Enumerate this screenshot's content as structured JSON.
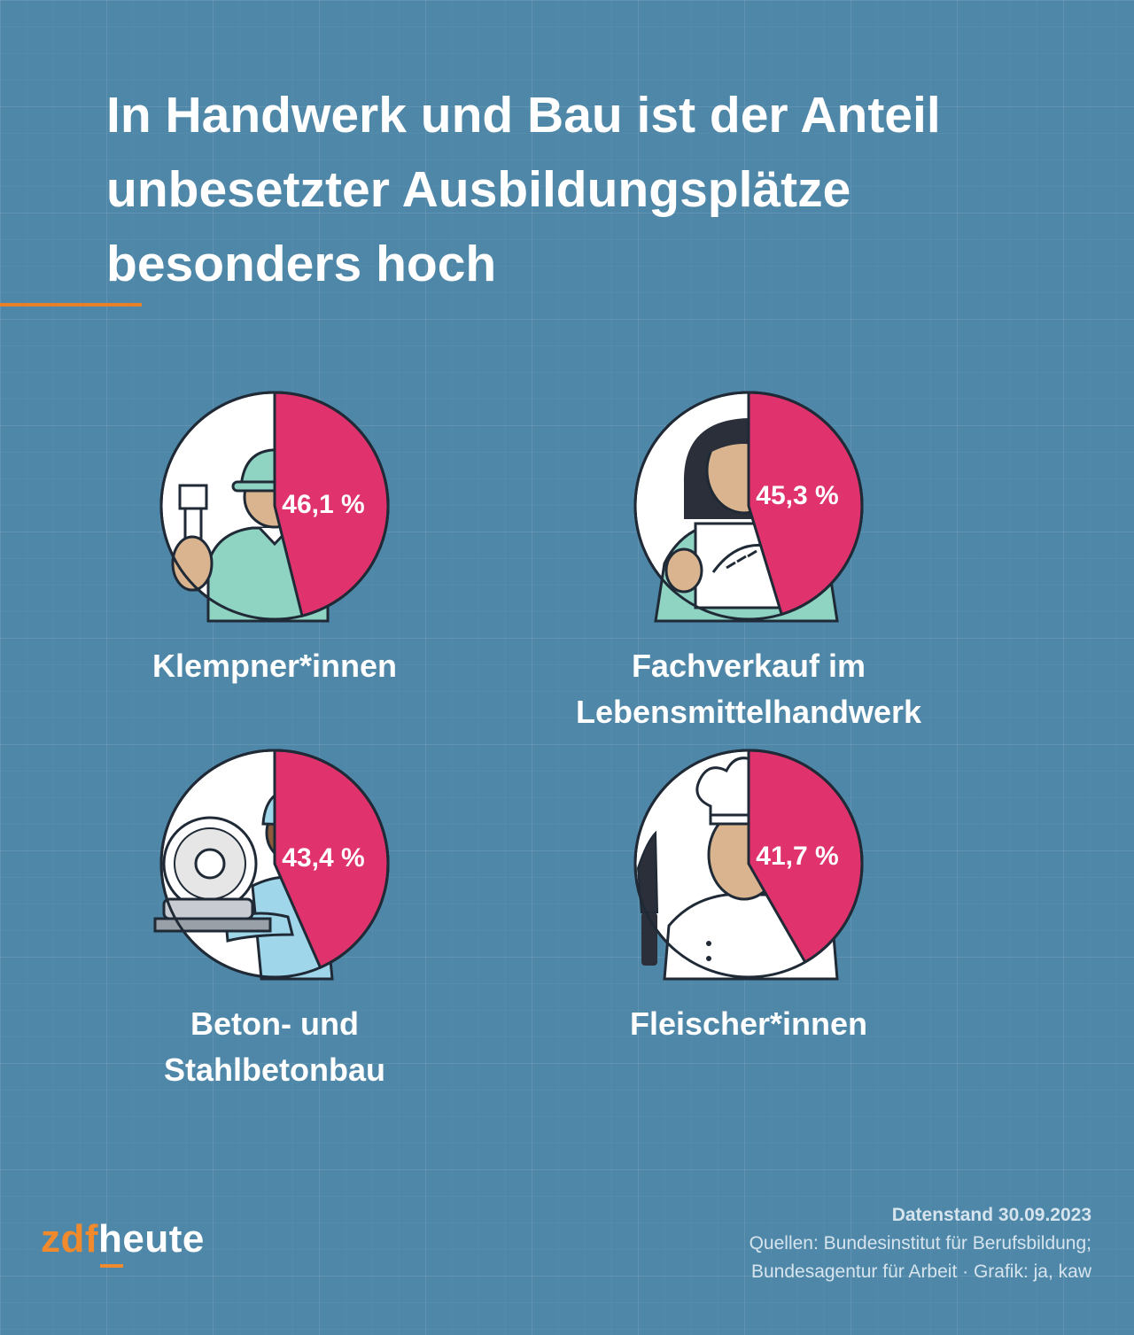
{
  "title": "In Handwerk und Bau ist der Anteil unbesetzter Ausbildungsplätze besonders hoch",
  "colors": {
    "accent": "#e8802a",
    "pie": "#e0336d",
    "background": "#4e87a8"
  },
  "chart_data": [
    {
      "type": "pie",
      "category_lines": [
        "Klempner*innen"
      ],
      "value": 46.1,
      "value_label": "46,1 %",
      "icon": "plumber-icon"
    },
    {
      "type": "pie",
      "category_lines": [
        "Fachverkauf im",
        "Lebensmittelhandwerk"
      ],
      "value": 45.3,
      "value_label": "45,3 %",
      "icon": "bakery-seller-icon"
    },
    {
      "type": "pie",
      "category_lines": [
        "Beton- und",
        "Stahlbetonbau"
      ],
      "value": 43.4,
      "value_label": "43,4 %",
      "icon": "construction-worker-icon"
    },
    {
      "type": "pie",
      "category_lines": [
        "Fleischer*innen"
      ],
      "value": 41.7,
      "value_label": "41,7 %",
      "icon": "butcher-icon"
    }
  ],
  "footer": {
    "date": "Datenstand 30.09.2023",
    "source_line1": "Quellen: Bundesinstitut für Berufsbildung;",
    "source_line2": "Bundesagentur für Arbeit · Grafik: ja, kaw"
  },
  "logo": {
    "part1": "zdf",
    "part2": "heute"
  }
}
